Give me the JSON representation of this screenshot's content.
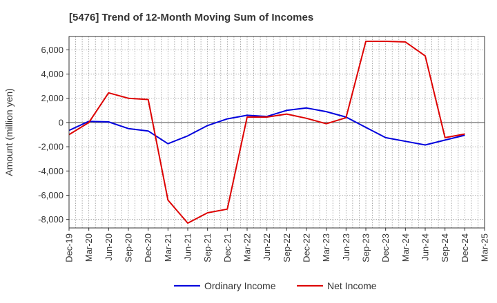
{
  "chart_data": {
    "type": "line",
    "title": "[5476]  Trend of 12-Month Moving Sum of Incomes",
    "xlabel": "",
    "ylabel": "Amount (million yen)",
    "ylim": [
      -8700,
      7100
    ],
    "yticks": [
      6000,
      4000,
      2000,
      0,
      -2000,
      -4000,
      -6000,
      -8000
    ],
    "ytick_labels": [
      "6,000",
      "4,000",
      "2,000",
      "0",
      "-2,000",
      "-4,000",
      "-6,000",
      "-8,000"
    ],
    "x": [
      "Dec-19",
      "Mar-20",
      "Jun-20",
      "Sep-20",
      "Dec-20",
      "Mar-21",
      "Jun-21",
      "Sep-21",
      "Dec-21",
      "Mar-22",
      "Jun-22",
      "Sep-22",
      "Dec-22",
      "Mar-23",
      "Jun-23",
      "Sep-23",
      "Dec-23",
      "Mar-24",
      "Jun-24",
      "Sep-24",
      "Dec-24",
      "Mar-25"
    ],
    "series": [
      {
        "name": "Ordinary Income",
        "color": "#0000dd",
        "values": [
          -650,
          100,
          50,
          -500,
          -700,
          -1750,
          -1100,
          -250,
          300,
          600,
          500,
          1000,
          1200,
          900,
          450,
          -400,
          -1250,
          -1550,
          -1850,
          -1450,
          -1050,
          null
        ]
      },
      {
        "name": "Net Income",
        "color": "#dd0000",
        "values": [
          -1000,
          0,
          2450,
          2000,
          1900,
          -6400,
          -8300,
          -7450,
          -7150,
          450,
          450,
          700,
          350,
          -100,
          400,
          6700,
          6700,
          6650,
          5500,
          -1250,
          -950,
          null
        ]
      }
    ],
    "grid": true,
    "legend": "bottom-center"
  }
}
